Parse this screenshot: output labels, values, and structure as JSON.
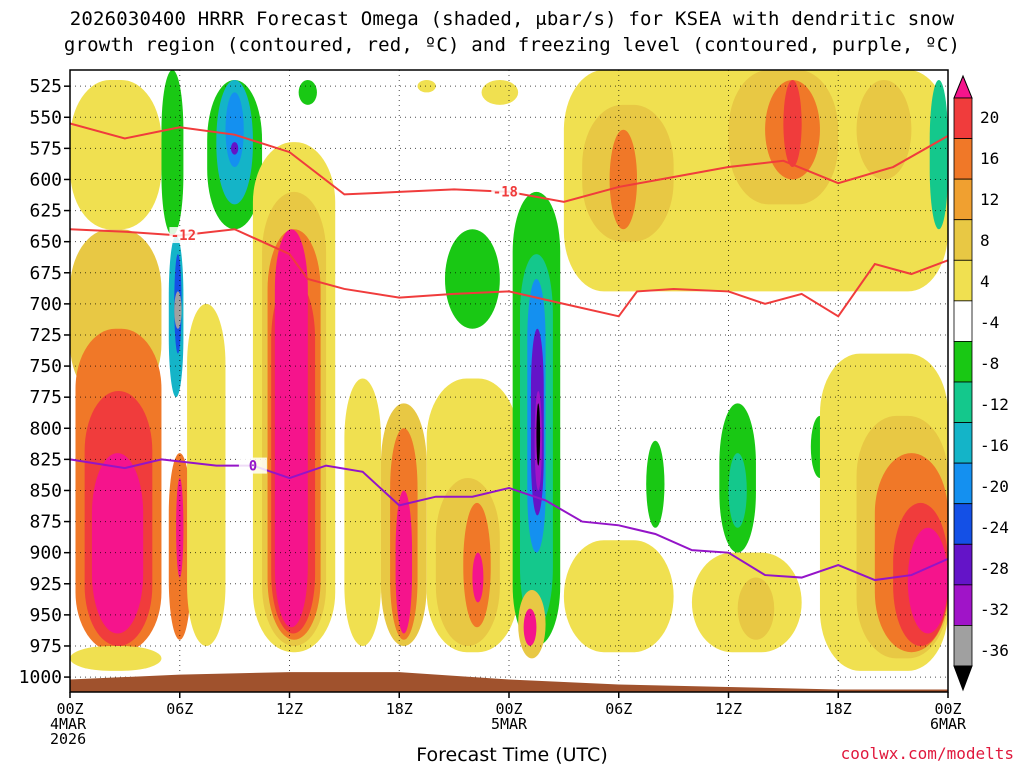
{
  "title_line1": "2026030400 HRRR Forecast Omega (shaded, μbar/s) for KSEA with dendritic snow",
  "title_line2": "growth region (contoured, red, ºC) and freezing level (contoured, purple, ºC)",
  "xlabel": "Forecast Time (UTC)",
  "credit": "coolwx.com/modelts",
  "chart_data": {
    "type": "heatmap",
    "title": "2026030400 HRRR Forecast Omega (shaded, μbar/s) for KSEA with dendritic snow growth region (contoured, red, ºC) and freezing level (contoured, purple, ºC)",
    "xlabel": "Forecast Time (UTC)",
    "ylabel": "Pressure (hPa)",
    "xlim": [
      0,
      48
    ],
    "ylim": [
      1012,
      512
    ],
    "y_ticks": [
      525,
      550,
      575,
      600,
      625,
      650,
      675,
      700,
      725,
      750,
      775,
      800,
      825,
      850,
      875,
      900,
      925,
      950,
      975,
      1000
    ],
    "x_ticks": [
      {
        "hour": 0,
        "lines": [
          "00Z",
          "4MAR",
          "2026"
        ]
      },
      {
        "hour": 6,
        "lines": [
          "06Z"
        ]
      },
      {
        "hour": 12,
        "lines": [
          "12Z"
        ]
      },
      {
        "hour": 18,
        "lines": [
          "18Z"
        ]
      },
      {
        "hour": 24,
        "lines": [
          "00Z",
          "5MAR"
        ]
      },
      {
        "hour": 30,
        "lines": [
          "06Z"
        ]
      },
      {
        "hour": 36,
        "lines": [
          "12Z"
        ]
      },
      {
        "hour": 42,
        "lines": [
          "18Z"
        ]
      },
      {
        "hour": 48,
        "lines": [
          "00Z",
          "6MAR"
        ]
      }
    ],
    "grid": true,
    "colorbar": {
      "labels": [
        "20",
        "16",
        "12",
        "8",
        "4",
        "-4",
        "-8",
        "-12",
        "-16",
        "-20",
        "-24",
        "-28",
        "-32",
        "-36"
      ],
      "colors": [
        "#f5148c",
        "#f03c3c",
        "#f07828",
        "#f0a030",
        "#e8c844",
        "#f0e050",
        "#ffffff",
        "#19c814",
        "#14c88c",
        "#14b4c8",
        "#1490f0",
        "#1450e6",
        "#6414c8",
        "#a014c8",
        "#a0a0a0",
        "#000000"
      ]
    },
    "omega_cells": [
      {
        "x0": 0,
        "x1": 5,
        "p0": 520,
        "p1": 640,
        "v": 4
      },
      {
        "x0": 0,
        "x1": 5,
        "p0": 640,
        "p1": 780,
        "v": 8
      },
      {
        "x0": 0.3,
        "x1": 5,
        "p0": 720,
        "p1": 980,
        "v": 12
      },
      {
        "x0": 0.8,
        "x1": 4.5,
        "p0": 770,
        "p1": 975,
        "v": 16
      },
      {
        "x0": 1.2,
        "x1": 4,
        "p0": 820,
        "p1": 965,
        "v": 20
      },
      {
        "x0": 0,
        "x1": 5,
        "p0": 975,
        "p1": 995,
        "v": 4
      },
      {
        "x0": 5,
        "x1": 6.2,
        "p0": 500,
        "p1": 645,
        "v": -4
      },
      {
        "x0": 5.4,
        "x1": 6.2,
        "p0": 645,
        "p1": 775,
        "v": -12
      },
      {
        "x0": 5.7,
        "x1": 6.1,
        "p0": 660,
        "p1": 740,
        "v": -20
      },
      {
        "x0": 5.7,
        "x1": 6.1,
        "p0": 690,
        "p1": 720,
        "v": -32
      },
      {
        "x0": 5.4,
        "x1": 6.6,
        "p0": 820,
        "p1": 970,
        "v": 12
      },
      {
        "x0": 5.8,
        "x1": 6.2,
        "p0": 840,
        "p1": 920,
        "v": 20
      },
      {
        "x0": 6.4,
        "x1": 8.5,
        "p0": 700,
        "p1": 975,
        "v": 4
      },
      {
        "x0": 7.5,
        "x1": 10.5,
        "p0": 520,
        "p1": 640,
        "v": -4
      },
      {
        "x0": 8,
        "x1": 10,
        "p0": 520,
        "p1": 620,
        "v": -12
      },
      {
        "x0": 8.5,
        "x1": 9.5,
        "p0": 530,
        "p1": 590,
        "v": -16
      },
      {
        "x0": 8.8,
        "x1": 9.2,
        "p0": 570,
        "p1": 580,
        "v": -24
      },
      {
        "x0": 10,
        "x1": 14.5,
        "p0": 570,
        "p1": 980,
        "v": 4
      },
      {
        "x0": 10.5,
        "x1": 14,
        "p0": 610,
        "p1": 975,
        "v": 8
      },
      {
        "x0": 10.8,
        "x1": 13.7,
        "p0": 640,
        "p1": 970,
        "v": 12
      },
      {
        "x0": 11,
        "x1": 13.4,
        "p0": 680,
        "p1": 965,
        "v": 16
      },
      {
        "x0": 11.2,
        "x1": 13,
        "p0": 640,
        "p1": 960,
        "v": 20
      },
      {
        "x0": 12.5,
        "x1": 13.5,
        "p0": 520,
        "p1": 540,
        "v": -4
      },
      {
        "x0": 15,
        "x1": 17,
        "p0": 760,
        "p1": 975,
        "v": 4
      },
      {
        "x0": 17,
        "x1": 19.5,
        "p0": 780,
        "p1": 975,
        "v": 8
      },
      {
        "x0": 17.5,
        "x1": 19,
        "p0": 800,
        "p1": 970,
        "v": 12
      },
      {
        "x0": 17.8,
        "x1": 18.7,
        "p0": 850,
        "p1": 965,
        "v": 20
      },
      {
        "x0": 19.5,
        "x1": 24.5,
        "p0": 760,
        "p1": 980,
        "v": 4
      },
      {
        "x0": 20,
        "x1": 23.5,
        "p0": 840,
        "p1": 975,
        "v": 8
      },
      {
        "x0": 21.5,
        "x1": 23,
        "p0": 860,
        "p1": 960,
        "v": 12
      },
      {
        "x0": 22,
        "x1": 22.6,
        "p0": 900,
        "p1": 940,
        "v": 20
      },
      {
        "x0": 20.5,
        "x1": 23.5,
        "p0": 640,
        "p1": 720,
        "v": -4
      },
      {
        "x0": 19,
        "x1": 20,
        "p0": 520,
        "p1": 530,
        "v": 4
      },
      {
        "x0": 22.5,
        "x1": 24.5,
        "p0": 520,
        "p1": 540,
        "v": 4
      },
      {
        "x0": 24.2,
        "x1": 26.8,
        "p0": 610,
        "p1": 975,
        "v": -4
      },
      {
        "x0": 24.6,
        "x1": 26.4,
        "p0": 660,
        "p1": 960,
        "v": -8
      },
      {
        "x0": 25,
        "x1": 26,
        "p0": 680,
        "p1": 900,
        "v": -16
      },
      {
        "x0": 25.2,
        "x1": 25.9,
        "p0": 720,
        "p1": 870,
        "v": -24
      },
      {
        "x0": 25.4,
        "x1": 25.8,
        "p0": 770,
        "p1": 850,
        "v": -28
      },
      {
        "x0": 25.5,
        "x1": 25.7,
        "p0": 780,
        "p1": 830,
        "v": -36
      },
      {
        "x0": 24.5,
        "x1": 26,
        "p0": 930,
        "p1": 985,
        "v": 8
      },
      {
        "x0": 24.8,
        "x1": 25.5,
        "p0": 945,
        "p1": 975,
        "v": 20
      },
      {
        "x0": 27,
        "x1": 48,
        "p0": 510,
        "p1": 690,
        "v": 4
      },
      {
        "x0": 28,
        "x1": 33,
        "p0": 540,
        "p1": 650,
        "v": 8
      },
      {
        "x0": 29.5,
        "x1": 31,
        "p0": 560,
        "p1": 640,
        "v": 12
      },
      {
        "x0": 36,
        "x1": 42,
        "p0": 510,
        "p1": 620,
        "v": 8
      },
      {
        "x0": 38,
        "x1": 41,
        "p0": 520,
        "p1": 600,
        "v": 12
      },
      {
        "x0": 39,
        "x1": 40,
        "p0": 520,
        "p1": 590,
        "v": 16
      },
      {
        "x0": 42,
        "x1": 48,
        "p0": 510,
        "p1": 640,
        "v": 4
      },
      {
        "x0": 43,
        "x1": 46,
        "p0": 520,
        "p1": 600,
        "v": 8
      },
      {
        "x0": 47,
        "x1": 48,
        "p0": 520,
        "p1": 640,
        "v": -8
      },
      {
        "x0": 31.5,
        "x1": 32.5,
        "p0": 810,
        "p1": 880,
        "v": -4
      },
      {
        "x0": 35.5,
        "x1": 37.5,
        "p0": 780,
        "p1": 900,
        "v": -4
      },
      {
        "x0": 36,
        "x1": 37,
        "p0": 820,
        "p1": 880,
        "v": -8
      },
      {
        "x0": 40.5,
        "x1": 41.5,
        "p0": 790,
        "p1": 840,
        "v": -4
      },
      {
        "x0": 27,
        "x1": 33,
        "p0": 890,
        "p1": 980,
        "v": 4
      },
      {
        "x0": 34,
        "x1": 40,
        "p0": 900,
        "p1": 980,
        "v": 4
      },
      {
        "x0": 36.5,
        "x1": 38.5,
        "p0": 920,
        "p1": 970,
        "v": 8
      },
      {
        "x0": 41,
        "x1": 48,
        "p0": 740,
        "p1": 995,
        "v": 4
      },
      {
        "x0": 43,
        "x1": 48,
        "p0": 790,
        "p1": 985,
        "v": 8
      },
      {
        "x0": 44,
        "x1": 48,
        "p0": 820,
        "p1": 980,
        "v": 12
      },
      {
        "x0": 45,
        "x1": 48,
        "p0": 860,
        "p1": 975,
        "v": 16
      },
      {
        "x0": 45.8,
        "x1": 48,
        "p0": 880,
        "p1": 965,
        "v": 20
      }
    ],
    "dendritic_contours": [
      {
        "label": "-18",
        "color": "#f03c3c",
        "label_at_hour": 23.8,
        "points": [
          [
            0,
            555
          ],
          [
            3,
            567
          ],
          [
            6,
            558
          ],
          [
            9,
            564
          ],
          [
            12,
            578
          ],
          [
            15,
            612
          ],
          [
            18,
            610
          ],
          [
            21,
            608
          ],
          [
            24,
            610
          ],
          [
            27,
            618
          ],
          [
            30,
            606
          ],
          [
            33,
            598
          ],
          [
            36,
            590
          ],
          [
            39,
            585
          ],
          [
            42,
            603
          ],
          [
            45,
            590
          ],
          [
            48,
            565
          ]
        ]
      },
      {
        "label": "-12",
        "color": "#f03c3c",
        "label_at_hour": 6.2,
        "points": [
          [
            0,
            640
          ],
          [
            3,
            642
          ],
          [
            6,
            645
          ],
          [
            9,
            640
          ],
          [
            12,
            660
          ],
          [
            13,
            680
          ],
          [
            15,
            688
          ],
          [
            18,
            695
          ],
          [
            21,
            692
          ],
          [
            24,
            690
          ],
          [
            27,
            700
          ],
          [
            30,
            710
          ],
          [
            31,
            690
          ],
          [
            33,
            688
          ],
          [
            36,
            690
          ],
          [
            38,
            700
          ],
          [
            40,
            692
          ],
          [
            42,
            710
          ],
          [
            44,
            668
          ],
          [
            46,
            676
          ],
          [
            48,
            665
          ]
        ]
      }
    ],
    "freezing_level": {
      "label": "0",
      "color": "#9414c8",
      "label_at_hour": 10,
      "points": [
        [
          0,
          825
        ],
        [
          3,
          832
        ],
        [
          5,
          825
        ],
        [
          8,
          830
        ],
        [
          10,
          830
        ],
        [
          12,
          840
        ],
        [
          14,
          830
        ],
        [
          16,
          835
        ],
        [
          18,
          862
        ],
        [
          20,
          855
        ],
        [
          22,
          855
        ],
        [
          24,
          848
        ],
        [
          26,
          858
        ],
        [
          28,
          875
        ],
        [
          30,
          878
        ],
        [
          32,
          885
        ],
        [
          34,
          898
        ],
        [
          36,
          900
        ],
        [
          38,
          918
        ],
        [
          40,
          920
        ],
        [
          42,
          910
        ],
        [
          44,
          922
        ],
        [
          46,
          918
        ],
        [
          48,
          905
        ]
      ]
    },
    "terrain": {
      "color": "#a0522d",
      "points": [
        [
          0,
          1002
        ],
        [
          6,
          998
        ],
        [
          12,
          996
        ],
        [
          18,
          996
        ],
        [
          24,
          1002
        ],
        [
          30,
          1006
        ],
        [
          36,
          1008
        ],
        [
          42,
          1010
        ],
        [
          48,
          1010
        ]
      ]
    }
  }
}
